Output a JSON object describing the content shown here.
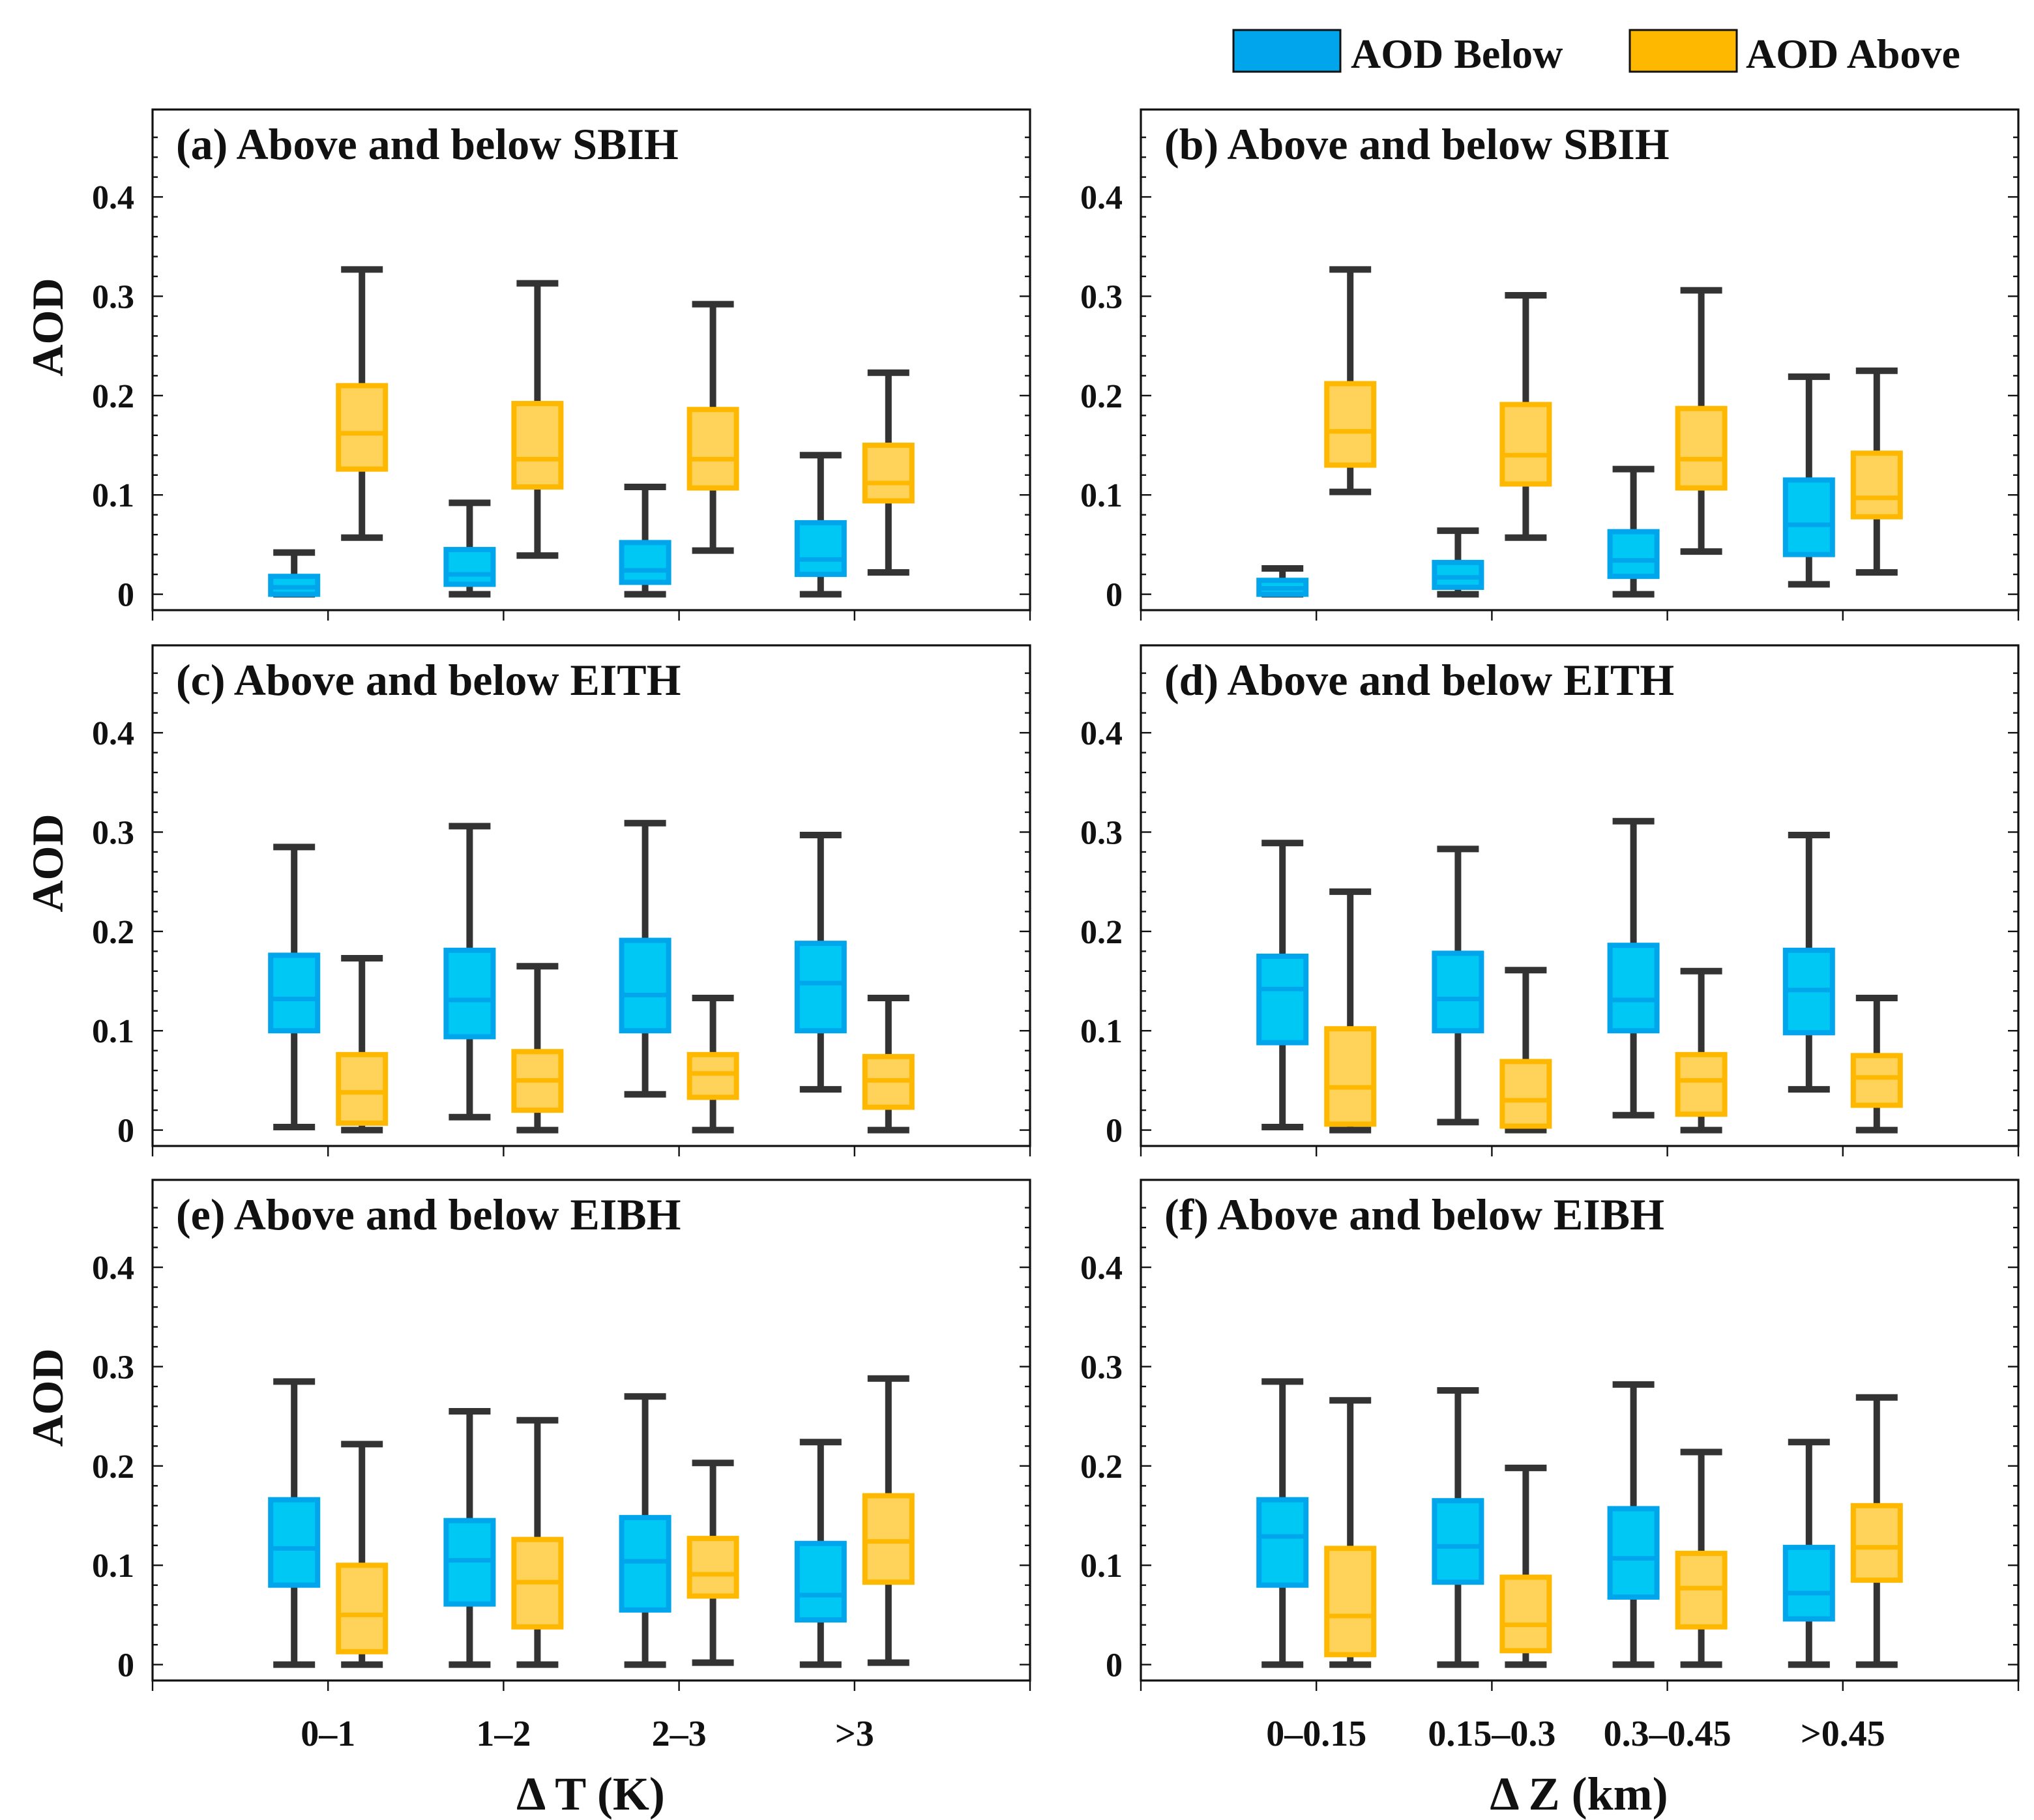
{
  "legend": {
    "items": [
      {
        "label": "AOD Below",
        "color": "#00a5ec"
      },
      {
        "label": "AOD Above",
        "color": "#ffb800"
      }
    ]
  },
  "colors": {
    "below_edge": "#00a5ec",
    "below_fill": "#00c8f5",
    "above_edge": "#ffb800",
    "above_fill": "#ffd35a",
    "whisker": "#333333"
  },
  "chart_data": [
    {
      "type": "box",
      "title": "(a) Above and below SBIH",
      "ylabel": "AOD",
      "xlabel": "Δ T (K)",
      "categories": [
        "0–1",
        "1–2",
        "2–3",
        ">3"
      ],
      "ylim": [
        -0.016,
        0.488
      ],
      "yticks": [
        0,
        0.1,
        0.2,
        0.3,
        0.4
      ],
      "series": [
        {
          "name": "AOD Below",
          "boxes": [
            [
              0,
              0,
              0.007,
              0.018,
              0.042
            ],
            [
              0,
              0.01,
              0.02,
              0.045,
              0.092
            ],
            [
              0,
              0.012,
              0.024,
              0.052,
              0.108
            ],
            [
              0,
              0.02,
              0.035,
              0.072,
              0.14
            ]
          ]
        },
        {
          "name": "AOD Above",
          "boxes": [
            [
              0.057,
              0.126,
              0.162,
              0.21,
              0.327
            ],
            [
              0.039,
              0.108,
              0.136,
              0.192,
              0.313
            ],
            [
              0.044,
              0.107,
              0.136,
              0.186,
              0.292
            ],
            [
              0.022,
              0.094,
              0.112,
              0.15,
              0.223
            ]
          ]
        }
      ]
    },
    {
      "type": "box",
      "title": "(b) Above and below SBIH",
      "ylabel": "",
      "xlabel": "Δ Z (km)",
      "categories": [
        "0–0.15",
        "0.15–0.3",
        "0.3–0.45",
        ">0.45"
      ],
      "ylim": [
        -0.016,
        0.488
      ],
      "yticks": [
        0,
        0.1,
        0.2,
        0.3,
        0.4
      ],
      "series": [
        {
          "name": "AOD Below",
          "boxes": [
            [
              0,
              0,
              0.006,
              0.014,
              0.026
            ],
            [
              0,
              0.007,
              0.017,
              0.032,
              0.064
            ],
            [
              0,
              0.018,
              0.034,
              0.063,
              0.126
            ],
            [
              0.01,
              0.04,
              0.07,
              0.115,
              0.219
            ]
          ]
        },
        {
          "name": "AOD Above",
          "boxes": [
            [
              0.103,
              0.13,
              0.164,
              0.212,
              0.327
            ],
            [
              0.057,
              0.111,
              0.14,
              0.191,
              0.301
            ],
            [
              0.043,
              0.107,
              0.136,
              0.187,
              0.306
            ],
            [
              0.022,
              0.078,
              0.097,
              0.142,
              0.225
            ]
          ]
        }
      ]
    },
    {
      "type": "box",
      "title": "(c) Above and below EITH",
      "ylabel": "AOD",
      "xlabel": "Δ T (K)",
      "categories": [
        "0–1",
        "1–2",
        "2–3",
        ">3"
      ],
      "ylim": [
        -0.016,
        0.488
      ],
      "yticks": [
        0,
        0.1,
        0.2,
        0.3,
        0.4
      ],
      "series": [
        {
          "name": "AOD Below",
          "boxes": [
            [
              0.003,
              0.1,
              0.132,
              0.176,
              0.285
            ],
            [
              0.013,
              0.094,
              0.131,
              0.181,
              0.306
            ],
            [
              0.036,
              0.1,
              0.136,
              0.191,
              0.309
            ],
            [
              0.041,
              0.1,
              0.148,
              0.188,
              0.297
            ]
          ]
        },
        {
          "name": "AOD Above",
          "boxes": [
            [
              0,
              0.007,
              0.038,
              0.076,
              0.173
            ],
            [
              0,
              0.02,
              0.05,
              0.079,
              0.165
            ],
            [
              0,
              0.033,
              0.057,
              0.076,
              0.133
            ],
            [
              0,
              0.023,
              0.05,
              0.074,
              0.133
            ]
          ]
        }
      ]
    },
    {
      "type": "box",
      "title": "(d) Above and below EITH",
      "ylabel": "",
      "xlabel": "Δ Z (km)",
      "categories": [
        "0–0.15",
        "0.15–0.3",
        "0.3–0.45",
        ">0.45"
      ],
      "ylim": [
        -0.016,
        0.488
      ],
      "yticks": [
        0,
        0.1,
        0.2,
        0.3,
        0.4
      ],
      "series": [
        {
          "name": "AOD Below",
          "boxes": [
            [
              0.003,
              0.088,
              0.142,
              0.175,
              0.289
            ],
            [
              0.008,
              0.1,
              0.132,
              0.178,
              0.283
            ],
            [
              0.015,
              0.1,
              0.131,
              0.186,
              0.311
            ],
            [
              0.041,
              0.098,
              0.141,
              0.181,
              0.297
            ]
          ]
        },
        {
          "name": "AOD Above",
          "boxes": [
            [
              0,
              0.006,
              0.043,
              0.102,
              0.24
            ],
            [
              0,
              0.004,
              0.03,
              0.069,
              0.161
            ],
            [
              0,
              0.016,
              0.05,
              0.076,
              0.16
            ],
            [
              0,
              0.025,
              0.053,
              0.075,
              0.133
            ]
          ]
        }
      ]
    },
    {
      "type": "box",
      "title": "(e) Above and below EIBH",
      "ylabel": "AOD",
      "xlabel": "Δ T (K)",
      "categories": [
        "0–1",
        "1–2",
        "2–3",
        ">3"
      ],
      "ylim": [
        -0.016,
        0.488
      ],
      "yticks": [
        0,
        0.1,
        0.2,
        0.3,
        0.4
      ],
      "series": [
        {
          "name": "AOD Below",
          "boxes": [
            [
              0,
              0.08,
              0.117,
              0.166,
              0.285
            ],
            [
              0,
              0.061,
              0.105,
              0.145,
              0.255
            ],
            [
              0,
              0.055,
              0.104,
              0.148,
              0.27
            ],
            [
              0,
              0.045,
              0.07,
              0.122,
              0.224
            ]
          ]
        },
        {
          "name": "AOD Above",
          "boxes": [
            [
              0,
              0.013,
              0.05,
              0.1,
              0.222
            ],
            [
              0,
              0.038,
              0.083,
              0.126,
              0.246
            ],
            [
              0.002,
              0.069,
              0.091,
              0.127,
              0.203
            ],
            [
              0.002,
              0.083,
              0.124,
              0.17,
              0.288
            ]
          ]
        }
      ]
    },
    {
      "type": "box",
      "title": "(f) Above and below EIBH",
      "ylabel": "",
      "xlabel": "Δ Z (km)",
      "categories": [
        "0–0.15",
        "0.15–0.3",
        "0.3–0.45",
        ">0.45"
      ],
      "ylim": [
        -0.016,
        0.488
      ],
      "yticks": [
        0,
        0.1,
        0.2,
        0.3,
        0.4
      ],
      "series": [
        {
          "name": "AOD Below",
          "boxes": [
            [
              0,
              0.08,
              0.129,
              0.166,
              0.285
            ],
            [
              0,
              0.083,
              0.119,
              0.165,
              0.276
            ],
            [
              0,
              0.068,
              0.107,
              0.157,
              0.282
            ],
            [
              0,
              0.046,
              0.072,
              0.118,
              0.224
            ]
          ]
        },
        {
          "name": "AOD Above",
          "boxes": [
            [
              0,
              0.01,
              0.049,
              0.117,
              0.266
            ],
            [
              0,
              0.014,
              0.04,
              0.088,
              0.198
            ],
            [
              0,
              0.038,
              0.077,
              0.112,
              0.214
            ],
            [
              0,
              0.085,
              0.118,
              0.16,
              0.269
            ]
          ]
        }
      ]
    }
  ],
  "axis_titles": {
    "left_x": "Δ T (K)",
    "right_x": "Δ Z (km)",
    "y": "AOD"
  }
}
